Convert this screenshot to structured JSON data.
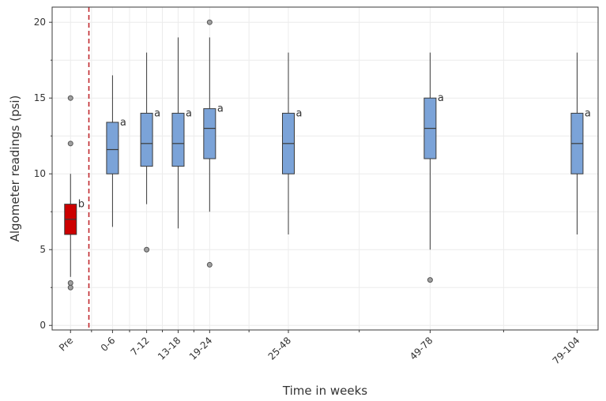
{
  "chart_data": {
    "type": "box",
    "xlabel": "Time in weeks",
    "ylabel": "Algometer readings (psi)",
    "ylim": [
      -0.3,
      21
    ],
    "y_ticks": [
      0,
      5,
      10,
      15,
      20
    ],
    "grid": true,
    "colors": {
      "pre": "#cc0000",
      "post": "#7ba3d8",
      "divider": "#c0282d",
      "grid": "#ececec",
      "outline": "#3a3a3a",
      "outlier": "#a0a0a0"
    },
    "divider_at_week": -1.5,
    "groups": [
      {
        "label": "Pre",
        "week": -5,
        "q1": 6.0,
        "median": 7.0,
        "q3": 8.0,
        "whisker_low": 3.2,
        "whisker_high": 10.0,
        "outliers": [
          2.5,
          2.8,
          12.0,
          15.0
        ],
        "sig": "b",
        "color": "pre"
      },
      {
        "label": "0-6",
        "week": 3,
        "q1": 10.0,
        "median": 11.6,
        "q3": 13.4,
        "whisker_low": 6.5,
        "whisker_high": 16.5,
        "outliers": [],
        "sig": "a",
        "color": "post"
      },
      {
        "label": "7-12",
        "week": 9.5,
        "q1": 10.5,
        "median": 12.0,
        "q3": 14.0,
        "whisker_low": 8.0,
        "whisker_high": 18.0,
        "outliers": [
          5.0
        ],
        "sig": "a",
        "color": "post"
      },
      {
        "label": "13-18",
        "week": 15.5,
        "q1": 10.5,
        "median": 12.0,
        "q3": 14.0,
        "whisker_low": 6.4,
        "whisker_high": 19.0,
        "outliers": [],
        "sig": "a",
        "color": "post"
      },
      {
        "label": "19-24",
        "week": 21.5,
        "q1": 11.0,
        "median": 13.0,
        "q3": 14.3,
        "whisker_low": 7.5,
        "whisker_high": 19.0,
        "outliers": [
          4.0,
          20.0
        ],
        "sig": "a",
        "color": "post"
      },
      {
        "label": "25-48",
        "week": 36.5,
        "q1": 10.0,
        "median": 12.0,
        "q3": 14.0,
        "whisker_low": 6.0,
        "whisker_high": 18.0,
        "outliers": [],
        "sig": "a",
        "color": "post"
      },
      {
        "label": "49-78",
        "week": 63.5,
        "q1": 11.0,
        "median": 13.0,
        "q3": 15.0,
        "whisker_low": 5.0,
        "whisker_high": 18.0,
        "outliers": [
          3.0
        ],
        "sig": "a",
        "color": "post"
      },
      {
        "label": "79-104",
        "week": 91.5,
        "q1": 10.0,
        "median": 12.0,
        "q3": 14.0,
        "whisker_low": 6.0,
        "whisker_high": 18.0,
        "outliers": [],
        "sig": "a",
        "color": "post"
      }
    ],
    "x_range": [
      -8.5,
      95.5
    ]
  }
}
